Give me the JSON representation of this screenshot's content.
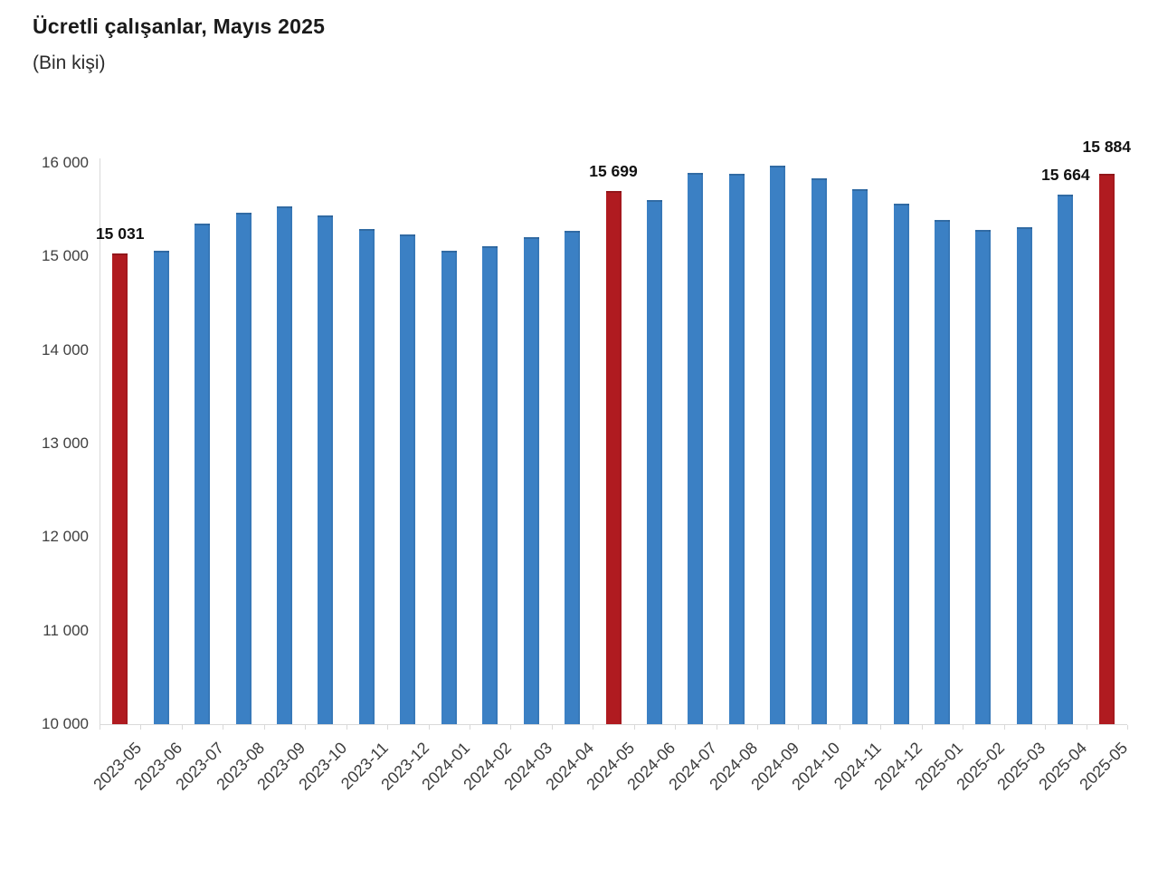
{
  "title": "Ücretli çalışanlar, Mayıs 2025",
  "subtitle": "(Bin kişi)",
  "colors": {
    "bar_blue": "#3b80c4",
    "bar_red": "#b01b20",
    "axis_line": "#d9d9d9",
    "tick_text": "#3f3f3f",
    "value_label_text": "#111111"
  },
  "chart_data": {
    "type": "bar",
    "title": "Ücretli çalışanlar, Mayıs 2025",
    "subtitle": "(Bin kişi)",
    "categories": [
      "2023-05",
      "2023-06",
      "2023-07",
      "2023-08",
      "2023-09",
      "2023-10",
      "2023-11",
      "2023-12",
      "2024-01",
      "2024-02",
      "2024-03",
      "2024-04",
      "2024-05",
      "2024-06",
      "2024-07",
      "2024-08",
      "2024-09",
      "2024-10",
      "2024-11",
      "2024-12",
      "2025-01",
      "2025-02",
      "2025-03",
      "2025-04",
      "2025-05"
    ],
    "values": [
      15031,
      15065,
      15355,
      15465,
      15540,
      15435,
      15290,
      15240,
      15065,
      15110,
      15210,
      15275,
      15699,
      15600,
      15895,
      15885,
      15975,
      15840,
      15720,
      15560,
      15395,
      15280,
      15310,
      15664,
      15884
    ],
    "highlight_indices": [
      0,
      12,
      24
    ],
    "data_labels": [
      {
        "index": 0,
        "text": "15 031"
      },
      {
        "index": 12,
        "text": "15 699"
      },
      {
        "index": 23,
        "text": "15 664"
      },
      {
        "index": 24,
        "text": "15 884"
      }
    ],
    "ylim": [
      10000,
      16000
    ],
    "yticks": [
      {
        "value": 16000,
        "label": "16 000"
      },
      {
        "value": 15000,
        "label": "15 000"
      },
      {
        "value": 14000,
        "label": "14 000"
      },
      {
        "value": 13000,
        "label": "13 000"
      },
      {
        "value": 12000,
        "label": "12 000"
      },
      {
        "value": 11000,
        "label": "11 000"
      },
      {
        "value": 10000,
        "label": "10 000"
      }
    ],
    "xlabel": "",
    "ylabel": "",
    "grid": false,
    "legend": false
  }
}
